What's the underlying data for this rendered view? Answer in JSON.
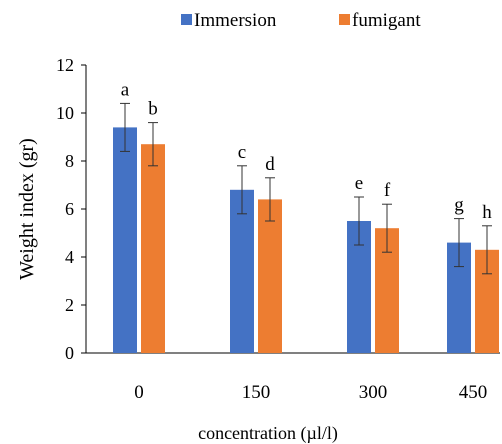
{
  "chart_data": {
    "type": "bar",
    "categories": [
      "0",
      "150",
      "300",
      "450"
    ],
    "series": [
      {
        "name": "Immersion",
        "color": "#4472C4",
        "values": [
          9.4,
          6.8,
          5.5,
          4.6
        ],
        "errors": [
          1.0,
          1.0,
          1.0,
          1.0
        ],
        "letters": [
          "a",
          "c",
          "e",
          "g"
        ]
      },
      {
        "name": "fumigant",
        "color": "#ED7D31",
        "values": [
          8.7,
          6.4,
          5.2,
          4.3
        ],
        "errors": [
          0.9,
          0.9,
          1.0,
          1.0
        ],
        "letters": [
          "b",
          "d",
          "f",
          "h"
        ]
      }
    ],
    "xlabel": "concentration (µl/l)",
    "ylabel": "Weight index (gr)",
    "ylim": [
      0,
      12
    ],
    "yticks": [
      0,
      2,
      4,
      6,
      8,
      10,
      12
    ],
    "legend_position": "top",
    "grid": false
  }
}
